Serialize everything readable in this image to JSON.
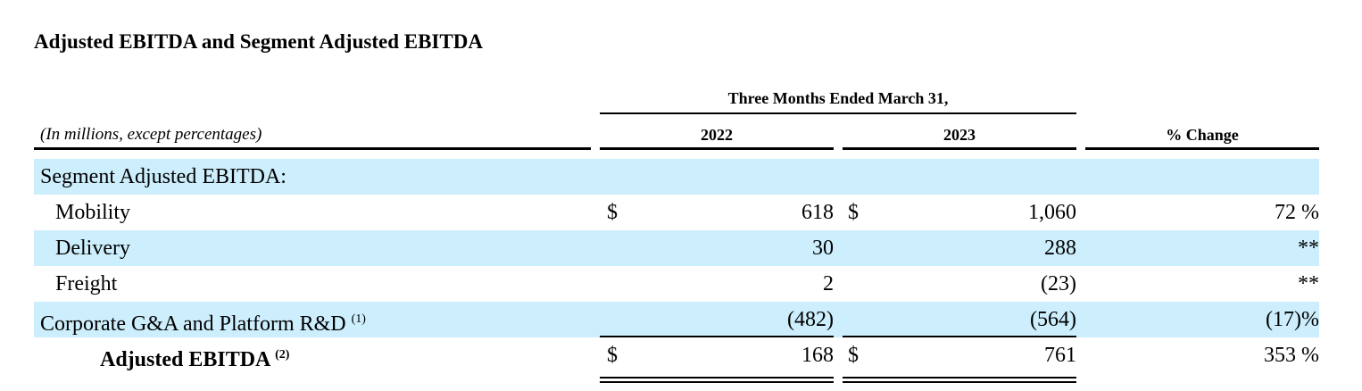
{
  "title": "Adjusted EBITDA and Segment Adjusted EBITDA",
  "table": {
    "period_header": "Three Months Ended March 31,",
    "columns": [
      "(In millions, except percentages)",
      "2022",
      "2023",
      "% Change"
    ],
    "rows": [
      {
        "label": "Segment Adjusted EBITDA:"
      },
      {
        "label": "Mobility",
        "dollar_2022": "$",
        "v2022": "618",
        "dollar_2023": "$",
        "v2023": "1,060",
        "change": "72 %"
      },
      {
        "label": "Delivery",
        "v2022": "30",
        "v2023": "288",
        "change": "**"
      },
      {
        "label": "Freight",
        "v2022": "2",
        "v2023": "(23)",
        "change": "**"
      },
      {
        "label": "Corporate G&A and Platform R&D",
        "note": "(1)",
        "v2022": "(482)",
        "v2023": "(564)",
        "change": "(17)%"
      },
      {
        "label": "Adjusted EBITDA",
        "note": "(2)",
        "dollar_2022": "$",
        "v2022": "168",
        "dollar_2023": "$",
        "v2023": "761",
        "change": "353 %"
      }
    ]
  }
}
